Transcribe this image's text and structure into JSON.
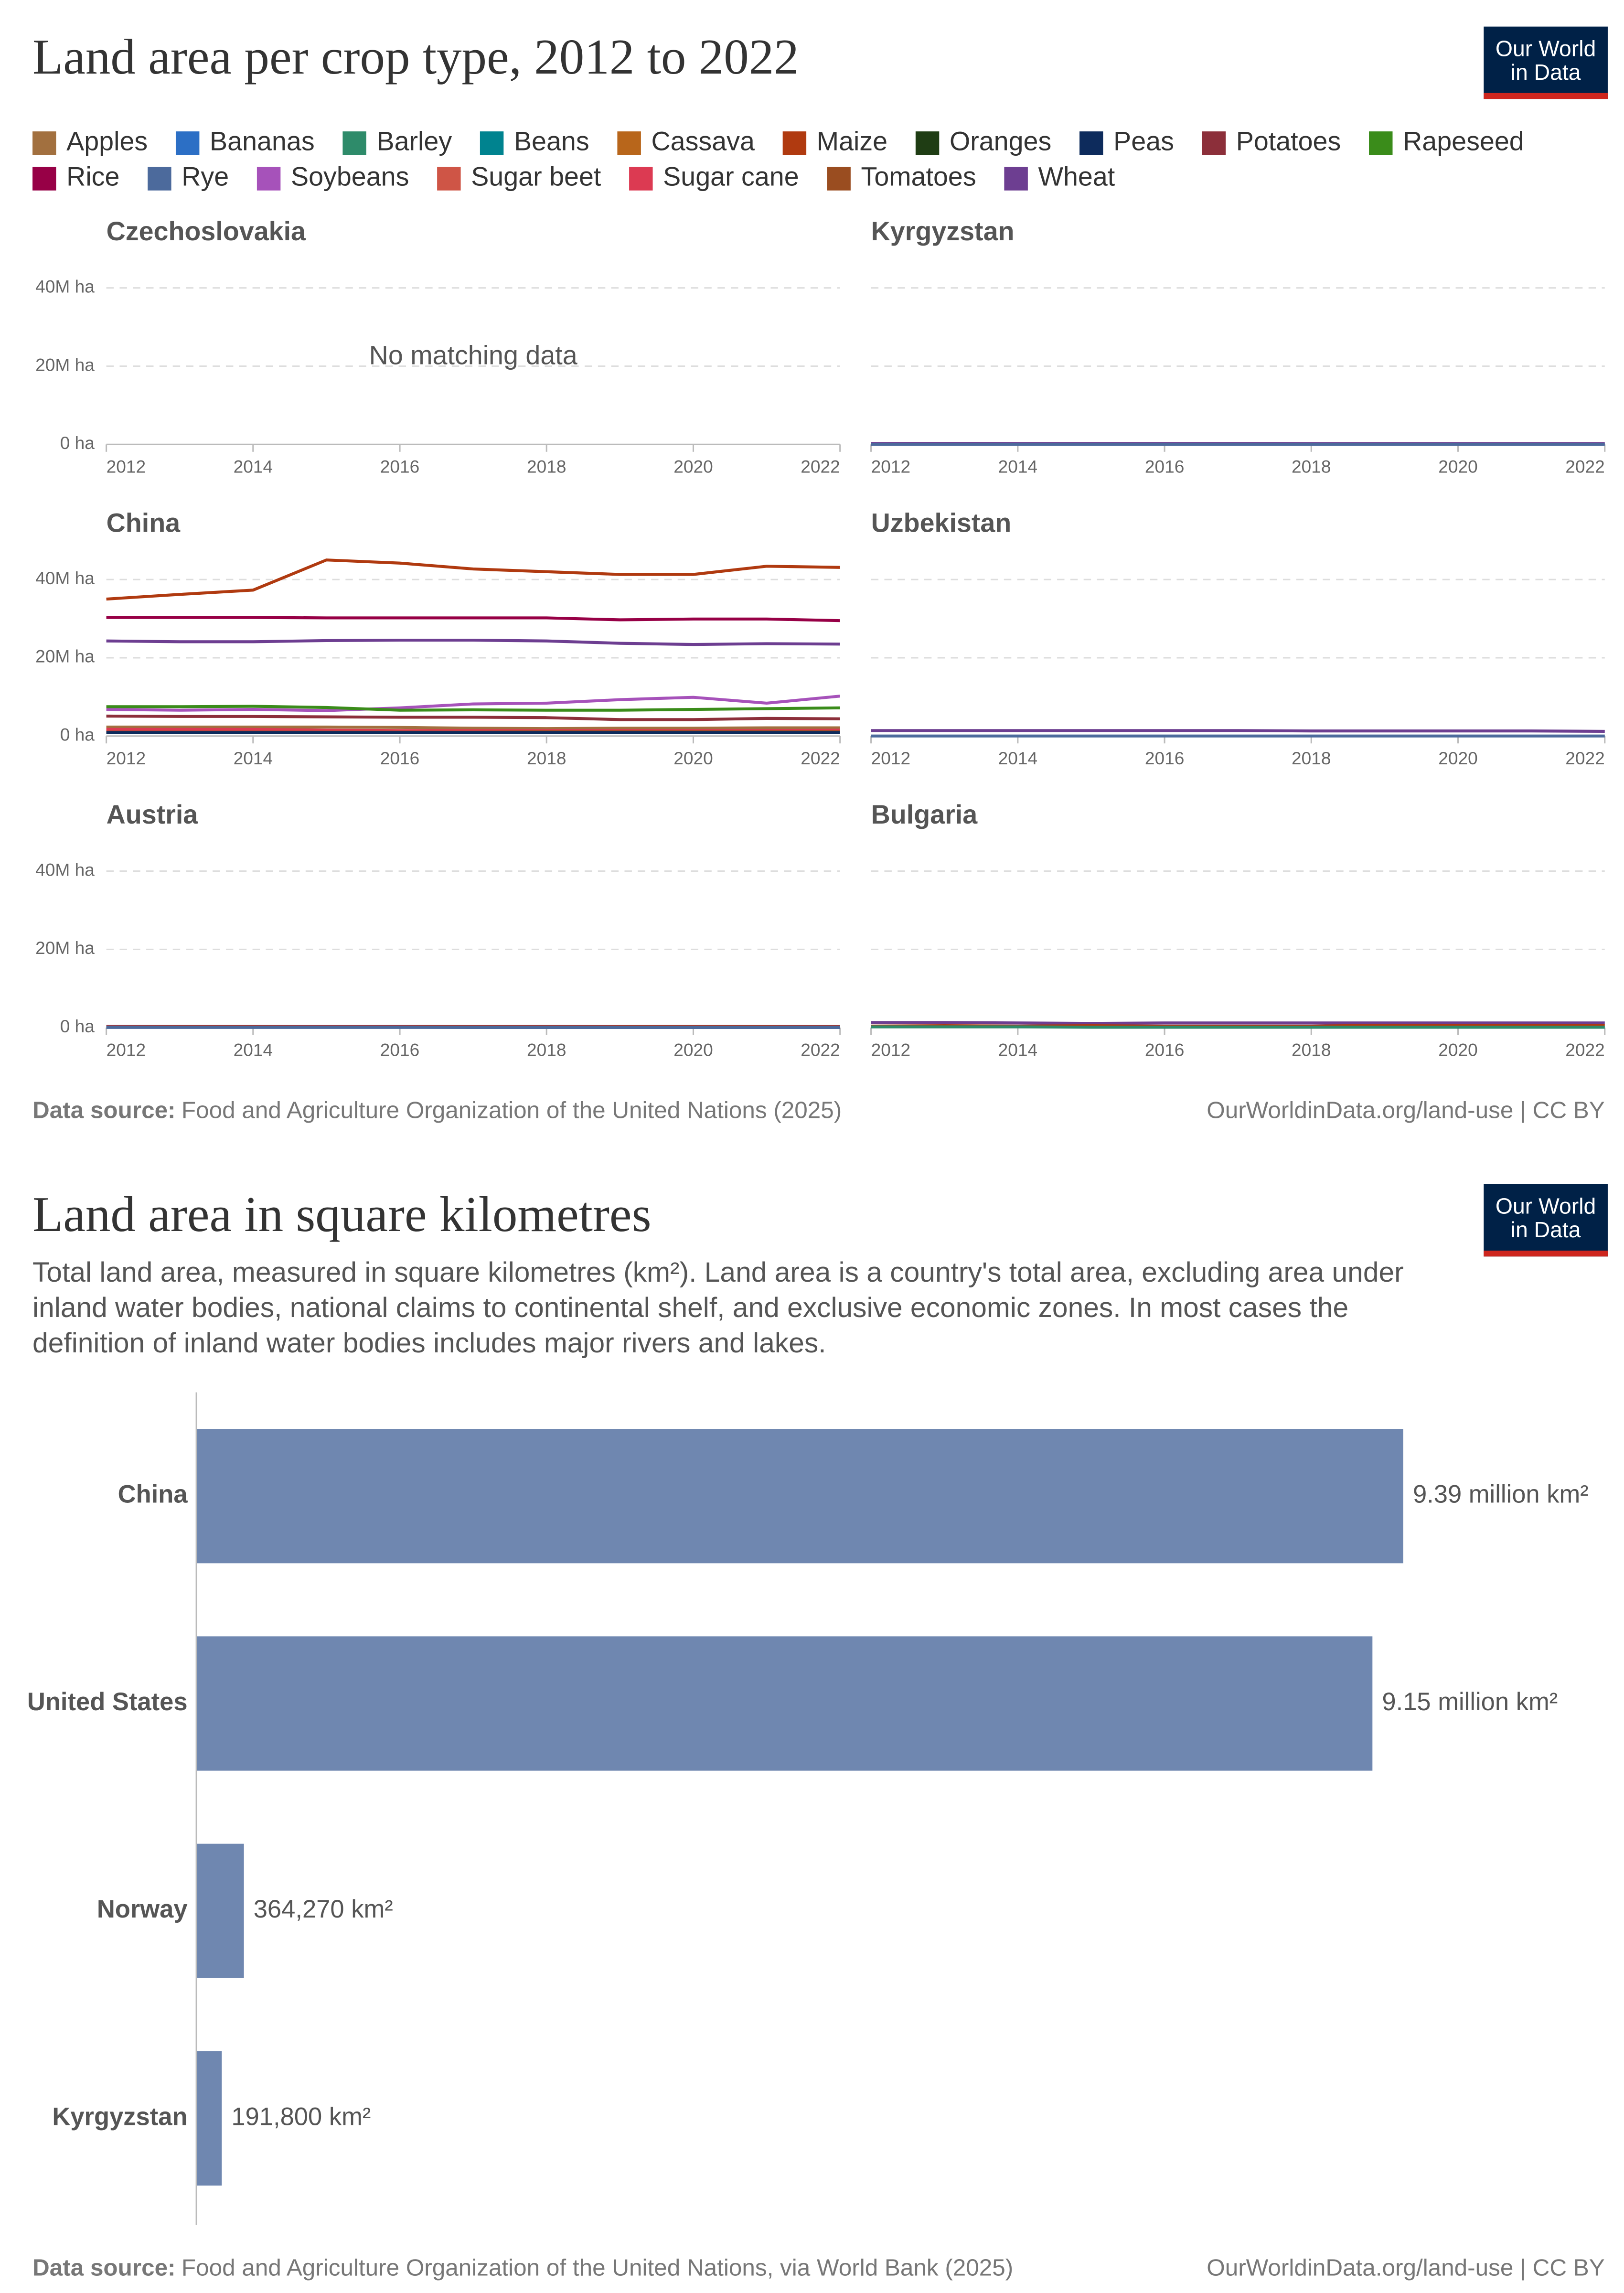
{
  "chart_data": [
    {
      "type": "line",
      "title": "Land area per crop type, 2012 to 2022",
      "logo_lines": [
        "Our World",
        "in Data"
      ],
      "series": [
        {
          "name": "Apples",
          "color": "#a2703f"
        },
        {
          "name": "Bananas",
          "color": "#2c6fc5"
        },
        {
          "name": "Barley",
          "color": "#2e8b6a"
        },
        {
          "name": "Beans",
          "color": "#00838f"
        },
        {
          "name": "Cassava",
          "color": "#b8661b"
        },
        {
          "name": "Maize",
          "color": "#b03a10"
        },
        {
          "name": "Oranges",
          "color": "#1f3d14"
        },
        {
          "name": "Peas",
          "color": "#0d2b5c"
        },
        {
          "name": "Potatoes",
          "color": "#8c2f3a"
        },
        {
          "name": "Rapeseed",
          "color": "#3a8c1a"
        },
        {
          "name": "Rice",
          "color": "#970046"
        },
        {
          "name": "Rye",
          "color": "#4c6a9c"
        },
        {
          "name": "Soybeans",
          "color": "#a652ba"
        },
        {
          "name": "Sugar beet",
          "color": "#cf5546"
        },
        {
          "name": "Sugar cane",
          "color": "#dc3a52"
        },
        {
          "name": "Tomatoes",
          "color": "#9a4d20"
        },
        {
          "name": "Wheat",
          "color": "#6d3e91"
        }
      ],
      "x": [
        2012,
        2013,
        2014,
        2015,
        2016,
        2017,
        2018,
        2019,
        2020,
        2021,
        2022
      ],
      "xlim": [
        2012,
        2022
      ],
      "xticks": [
        2012,
        2014,
        2016,
        2018,
        2020,
        2022
      ],
      "ylim": [
        0,
        46000000
      ],
      "yticks": [
        {
          "value": 0,
          "label": "0 ha"
        },
        {
          "value": 20000000,
          "label": "20M ha"
        },
        {
          "value": 40000000,
          "label": "40M ha"
        }
      ],
      "grid": true,
      "facets": [
        {
          "title": "Czechoslovakia",
          "note": "No matching data",
          "series": []
        },
        {
          "title": "Kyrgyzstan",
          "series": [
            {
              "name": "Wheat",
              "values": [
                250000,
                260000,
                250000,
                250000,
                240000,
                240000,
                230000,
                230000,
                230000,
                230000,
                230000
              ]
            },
            {
              "name": "Rye",
              "values": [
                10000,
                10000,
                10000,
                10000,
                10000,
                10000,
                10000,
                10000,
                10000,
                10000,
                10000
              ]
            }
          ]
        },
        {
          "title": "China",
          "series": [
            {
              "name": "Maize",
              "values": [
                35000000,
                36200000,
                37300000,
                45000000,
                44200000,
                42700000,
                42000000,
                41300000,
                41300000,
                43400000,
                43100000
              ]
            },
            {
              "name": "Rice",
              "values": [
                30300000,
                30300000,
                30300000,
                30200000,
                30200000,
                30200000,
                30200000,
                29700000,
                29900000,
                29900000,
                29500000
              ]
            },
            {
              "name": "Wheat",
              "values": [
                24300000,
                24100000,
                24100000,
                24400000,
                24500000,
                24500000,
                24300000,
                23700000,
                23400000,
                23600000,
                23500000
              ]
            },
            {
              "name": "Soybeans",
              "values": [
                6800000,
                6600000,
                6800000,
                6500000,
                7200000,
                8200000,
                8400000,
                9300000,
                9900000,
                8400000,
                10200000
              ]
            },
            {
              "name": "Rapeseed",
              "values": [
                7500000,
                7500000,
                7600000,
                7300000,
                6600000,
                6700000,
                6600000,
                6600000,
                6800000,
                7000000,
                7200000
              ]
            },
            {
              "name": "Potatoes",
              "values": [
                5100000,
                5000000,
                5000000,
                4900000,
                4800000,
                4800000,
                4700000,
                4200000,
                4200000,
                4500000,
                4400000
              ]
            },
            {
              "name": "Apples",
              "values": [
                2300000,
                2300000,
                2300000,
                2300000,
                2200000,
                2000000,
                1900000,
                2000000,
                2000000,
                2100000,
                2100000
              ]
            },
            {
              "name": "Sugar cane",
              "values": [
                1700000,
                1700000,
                1700000,
                1500000,
                1400000,
                1400000,
                1400000,
                1400000,
                1400000,
                1400000,
                1500000
              ]
            },
            {
              "name": "Tomatoes",
              "values": [
                1000000,
                1000000,
                1000000,
                1000000,
                1000000,
                1000000,
                1100000,
                1100000,
                1100000,
                1100000,
                1100000
              ]
            },
            {
              "name": "Peas",
              "values": [
                900000,
                900000,
                900000,
                900000,
                900000,
                900000,
                900000,
                900000,
                900000,
                900000,
                900000
              ]
            }
          ]
        },
        {
          "title": "Uzbekistan",
          "series": [
            {
              "name": "Wheat",
              "values": [
                1400000,
                1400000,
                1400000,
                1400000,
                1400000,
                1400000,
                1300000,
                1300000,
                1300000,
                1300000,
                1200000
              ]
            },
            {
              "name": "Rye",
              "values": [
                10000,
                10000,
                10000,
                10000,
                10000,
                10000,
                10000,
                10000,
                10000,
                10000,
                10000
              ]
            }
          ]
        },
        {
          "title": "Austria",
          "series": [
            {
              "name": "Wheat",
              "values": [
                300000,
                300000,
                300000,
                290000,
                300000,
                290000,
                300000,
                290000,
                310000,
                290000,
                270000
              ]
            },
            {
              "name": "Maize",
              "values": [
                200000,
                210000,
                210000,
                190000,
                200000,
                210000,
                210000,
                220000,
                220000,
                220000,
                210000
              ]
            },
            {
              "name": "Rye",
              "values": [
                50000,
                50000,
                50000,
                50000,
                50000,
                40000,
                40000,
                40000,
                40000,
                40000,
                40000
              ]
            }
          ]
        },
        {
          "title": "Bulgaria",
          "series": [
            {
              "name": "Wheat",
              "values": [
                1300000,
                1300000,
                1200000,
                1100000,
                1200000,
                1200000,
                1200000,
                1200000,
                1200000,
                1200000,
                1200000
              ]
            },
            {
              "name": "Maize",
              "values": [
                400000,
                500000,
                400000,
                500000,
                400000,
                400000,
                400000,
                600000,
                500000,
                500000,
                500000
              ]
            },
            {
              "name": "Barley",
              "values": [
                200000,
                200000,
                200000,
                100000,
                100000,
                100000,
                100000,
                100000,
                100000,
                100000,
                100000
              ]
            }
          ]
        }
      ],
      "source_label": "Data source:",
      "source": "Food and Agriculture Organization of the United Nations (2025)",
      "credit": "OurWorldinData.org/land-use | CC BY"
    },
    {
      "type": "bar",
      "orientation": "horizontal",
      "title": "Land area in square kilometres",
      "logo_lines": [
        "Our World",
        "in Data"
      ],
      "subtitle": "Total land area, measured in square kilometres (km²). Land area is a country's total area, excluding area under inland water bodies, national claims to continental shelf, and exclusive economic zones. In most cases the definition of inland water bodies includes major rivers and lakes.",
      "categories": [
        "China",
        "United States",
        "Norway",
        "Kyrgyzstan"
      ],
      "values": [
        9390000,
        9150000,
        364270,
        191800
      ],
      "value_labels": [
        "9.39 million km²",
        "9.15 million km²",
        "364,270 km²",
        "191,800 km²"
      ],
      "color": "#6f87b0",
      "source_label": "Data source:",
      "source": "Food and Agriculture Organization of the United Nations, via World Bank (2025)",
      "credit": "OurWorldinData.org/land-use | CC BY"
    }
  ]
}
